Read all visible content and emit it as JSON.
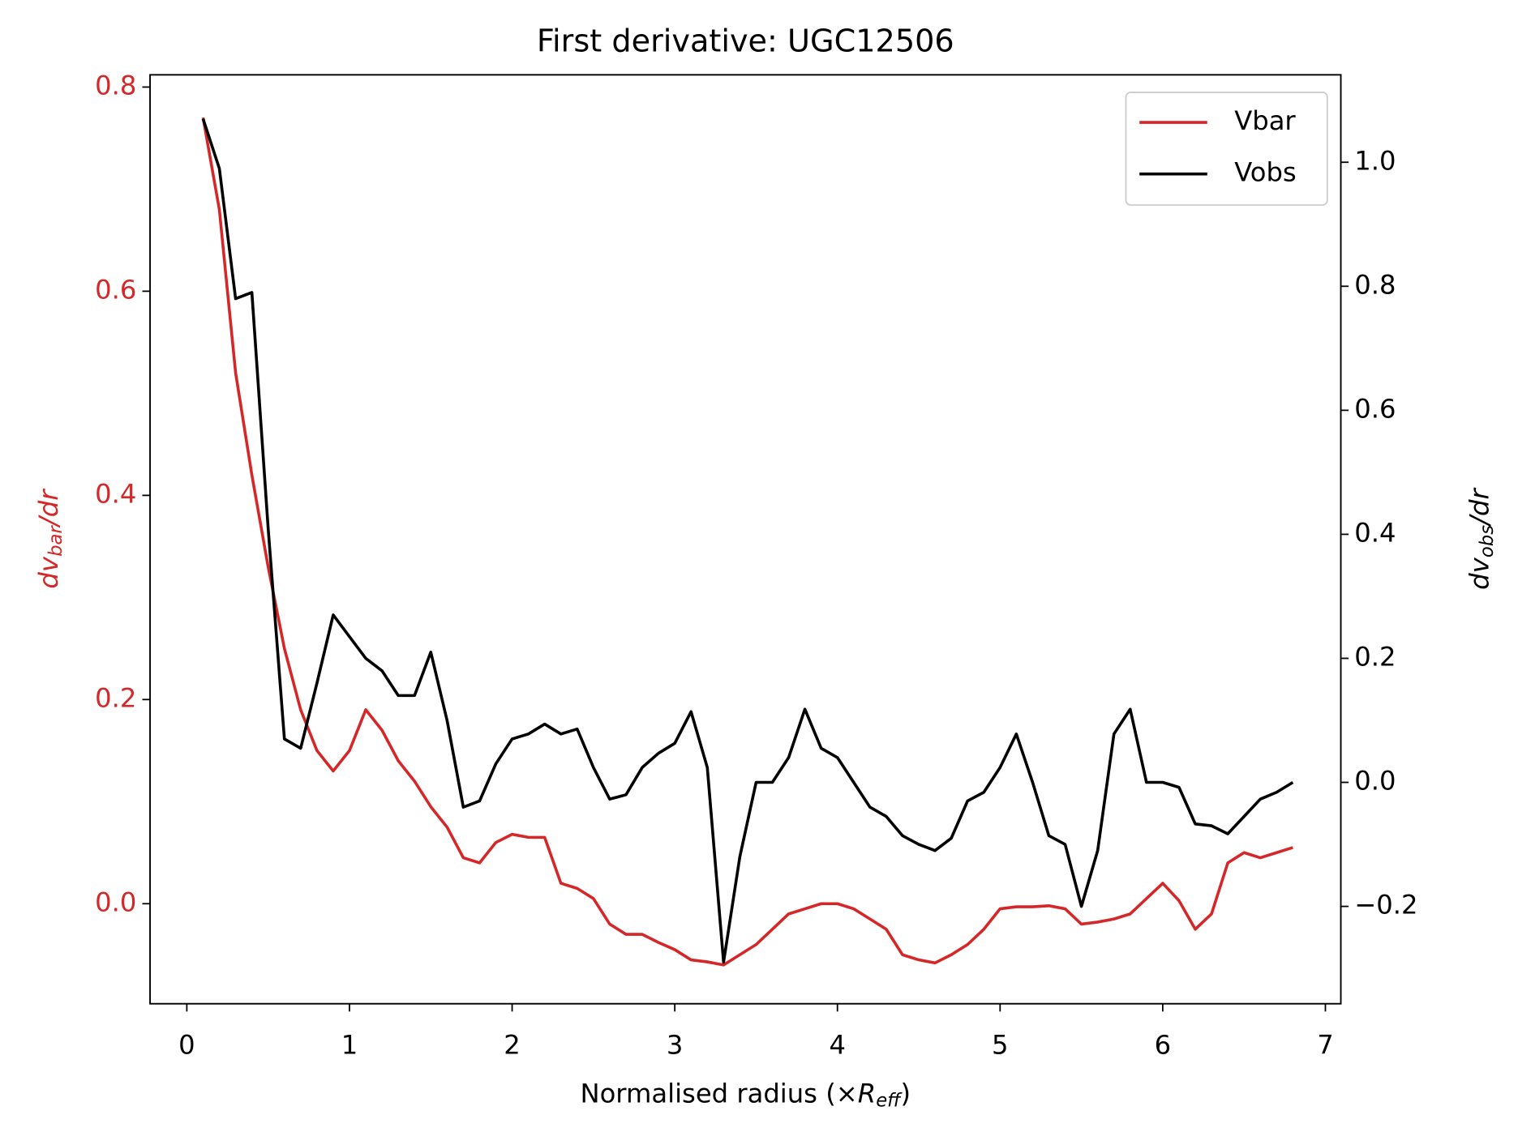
{
  "chart_data": {
    "type": "line",
    "title": "First derivative: UGC12506",
    "xlabel": [
      "Normalised radius (×",
      "R",
      "eff",
      ")"
    ],
    "ylabel": [
      "dv",
      "bar",
      "/dr"
    ],
    "y2label": [
      "dv",
      "obs",
      "/dr"
    ],
    "x": [
      0.1,
      0.2,
      0.3,
      0.4,
      0.5,
      0.6,
      0.7,
      0.8,
      0.9,
      1.0,
      1.1,
      1.2,
      1.3,
      1.4,
      1.5,
      1.6,
      1.7,
      1.8,
      1.9,
      2.0,
      2.1,
      2.2,
      2.3,
      2.4,
      2.5,
      2.6,
      2.7,
      2.8,
      2.9,
      3.0,
      3.1,
      3.2,
      3.3,
      3.4,
      3.5,
      3.6,
      3.7,
      3.8,
      3.9,
      4.0,
      4.1,
      4.2,
      4.3,
      4.4,
      4.5,
      4.6,
      4.7,
      4.8,
      4.9,
      5.0,
      5.1,
      5.2,
      5.3,
      5.4,
      5.5,
      5.6,
      5.7,
      5.8,
      5.9,
      6.0,
      6.1,
      6.2,
      6.3,
      6.4,
      6.5,
      6.6,
      6.7,
      6.8
    ],
    "series": [
      {
        "name": "Vbar",
        "color": "#d62728",
        "axis": "y",
        "values": [
          0.77,
          0.68,
          0.52,
          0.42,
          0.33,
          0.25,
          0.19,
          0.15,
          0.13,
          0.15,
          0.19,
          0.17,
          0.14,
          0.12,
          0.095,
          0.075,
          0.045,
          0.04,
          0.06,
          0.068,
          0.065,
          0.065,
          0.02,
          0.015,
          0.005,
          -0.02,
          -0.03,
          -0.03,
          -0.038,
          -0.045,
          -0.055,
          -0.057,
          -0.06,
          -0.05,
          -0.04,
          -0.025,
          -0.01,
          -0.005,
          0.0,
          0.0,
          -0.005,
          -0.015,
          -0.025,
          -0.05,
          -0.055,
          -0.058,
          -0.05,
          -0.04,
          -0.025,
          -0.005,
          -0.003,
          -0.003,
          -0.002,
          -0.005,
          -0.02,
          -0.018,
          -0.015,
          -0.01,
          0.005,
          0.02,
          0.003,
          -0.025,
          -0.01,
          0.04,
          0.05,
          0.045,
          0.05,
          0.055
        ]
      },
      {
        "name": "Vobs",
        "color": "#000000",
        "axis": "y2",
        "values": [
          1.07,
          0.99,
          0.78,
          0.79,
          0.41,
          0.07,
          0.055,
          0.16,
          0.27,
          0.235,
          0.2,
          0.18,
          0.14,
          0.14,
          0.21,
          0.1,
          -0.04,
          -0.03,
          0.03,
          0.07,
          0.078,
          0.094,
          0.078,
          0.086,
          0.024,
          -0.027,
          -0.02,
          0.024,
          0.047,
          0.063,
          0.114,
          0.024,
          -0.29,
          -0.12,
          0.0,
          0.0,
          0.04,
          0.118,
          0.055,
          0.04,
          0.0,
          -0.04,
          -0.055,
          -0.086,
          -0.1,
          -0.11,
          -0.09,
          -0.03,
          -0.016,
          0.024,
          0.078,
          0.0,
          -0.086,
          -0.1,
          -0.2,
          -0.11,
          0.078,
          0.118,
          0.0,
          0.0,
          -0.008,
          -0.067,
          -0.07,
          -0.083,
          -0.055,
          -0.027,
          -0.016,
          0.0
        ]
      }
    ],
    "xlim": [
      -0.226,
      7.095
    ],
    "xticks": [
      0,
      1,
      2,
      3,
      4,
      5,
      6,
      7
    ],
    "ylim": [
      -0.098,
      0.812
    ],
    "yticks": [
      {
        "value": 0,
        "label": "0.0"
      },
      0.2,
      0.4,
      0.6,
      0.8
    ],
    "y2lim": [
      -0.357,
      1.141
    ],
    "y2ticks": [
      {
        "value": -0.2,
        "label": "−0.2"
      },
      {
        "value": 0,
        "label": "0.0"
      },
      0.2,
      0.4,
      0.6,
      0.8,
      {
        "value": 1,
        "label": "1.0"
      }
    ],
    "ytick_color": "#d62728",
    "legend": "upper right",
    "grid": false
  }
}
